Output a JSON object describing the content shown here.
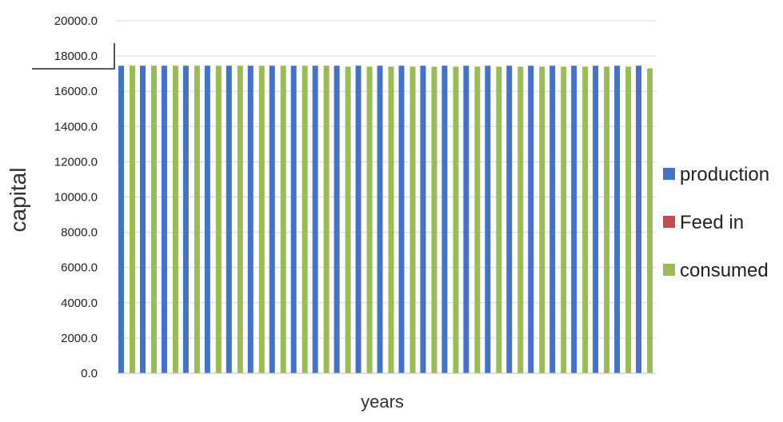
{
  "chart_data": {
    "type": "bar",
    "title": "",
    "xlabel": "years",
    "ylabel": "capital",
    "ylim": [
      0,
      20000
    ],
    "y_ticks": [
      "0.0",
      "2000.0",
      "4000.0",
      "6000.0",
      "8000.0",
      "10000.0",
      "12000.0",
      "14000.0",
      "16000.0",
      "18000.0",
      "20000.0"
    ],
    "grid": true,
    "legend_position": "right",
    "series": [
      {
        "name": "production",
        "color": "#4472c4",
        "values": [
          17450,
          17450,
          17450,
          17450,
          17450,
          17450,
          17450,
          17450,
          17450,
          17450,
          17450,
          17450,
          17450,
          17450,
          17450,
          17450,
          17450,
          17450,
          17450,
          17450,
          17450,
          17450,
          17450,
          17450,
          17450
        ]
      },
      {
        "name": "Feed in",
        "color": "#c0504d",
        "values": [
          0,
          0,
          0,
          0,
          0,
          0,
          0,
          0,
          0,
          0,
          0,
          0,
          0,
          0,
          0,
          0,
          0,
          0,
          0,
          0,
          0,
          0,
          0,
          0,
          0
        ]
      },
      {
        "name": "consumed",
        "color": "#9bbb59",
        "values": [
          17450,
          17450,
          17450,
          17450,
          17450,
          17450,
          17450,
          17450,
          17450,
          17450,
          17400,
          17400,
          17400,
          17400,
          17400,
          17400,
          17400,
          17400,
          17400,
          17400,
          17400,
          17400,
          17400,
          17400,
          17300
        ]
      }
    ]
  }
}
